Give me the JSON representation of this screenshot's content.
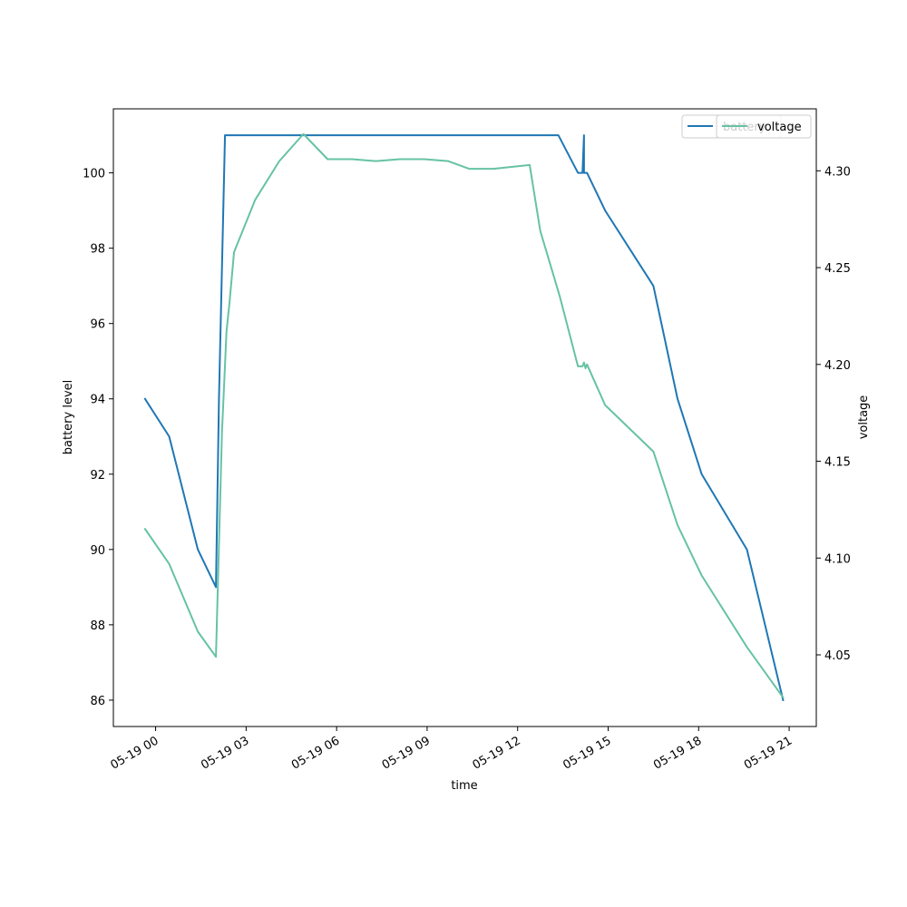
{
  "chart_data": {
    "type": "line",
    "xlabel": "time",
    "ylabel_left": "battery level",
    "ylabel_right": "voltage",
    "x_ticks": [
      {
        "label": "05-19 00",
        "hour": 0
      },
      {
        "label": "05-19 03",
        "hour": 3
      },
      {
        "label": "05-19 06",
        "hour": 6
      },
      {
        "label": "05-19 09",
        "hour": 9
      },
      {
        "label": "05-19 12",
        "hour": 12
      },
      {
        "label": "05-19 15",
        "hour": 15
      },
      {
        "label": "05-19 18",
        "hour": 18
      },
      {
        "label": "05-19 21",
        "hour": 21
      }
    ],
    "xlim_hours": [
      -1.4,
      21.9
    ],
    "left_axis": {
      "ylim": [
        85.3,
        101.7
      ],
      "ticks": [
        86,
        88,
        90,
        92,
        94,
        96,
        98,
        100
      ]
    },
    "right_axis": {
      "ylim": [
        4.013,
        4.332
      ],
      "ticks": [
        4.05,
        4.1,
        4.15,
        4.2,
        4.25,
        4.3
      ],
      "tick_labels": [
        "4.05",
        "4.10",
        "4.15",
        "4.20",
        "4.25",
        "4.30"
      ]
    },
    "series": [
      {
        "name": "battery",
        "axis": "left",
        "color": "#1f77b4",
        "points": [
          [
            -0.35,
            94
          ],
          [
            0.45,
            93
          ],
          [
            1.4,
            90
          ],
          [
            2.0,
            89
          ],
          [
            2.1,
            94
          ],
          [
            2.3,
            101
          ],
          [
            13.35,
            101
          ],
          [
            14.0,
            100
          ],
          [
            14.15,
            100
          ],
          [
            14.2,
            101
          ],
          [
            14.2,
            100
          ],
          [
            14.3,
            100
          ],
          [
            14.9,
            99
          ],
          [
            16.5,
            97
          ],
          [
            17.3,
            94
          ],
          [
            18.1,
            92
          ],
          [
            19.6,
            90
          ],
          [
            20.8,
            86
          ]
        ]
      },
      {
        "name": "voltage",
        "axis": "right",
        "color": "#66c2a5",
        "points": [
          [
            -0.35,
            4.115
          ],
          [
            0.45,
            4.097
          ],
          [
            1.4,
            4.062
          ],
          [
            2.0,
            4.049
          ],
          [
            2.2,
            4.165
          ],
          [
            2.35,
            4.217
          ],
          [
            2.45,
            4.232
          ],
          [
            2.6,
            4.258
          ],
          [
            3.3,
            4.285
          ],
          [
            4.1,
            4.305
          ],
          [
            4.9,
            4.319
          ],
          [
            5.7,
            4.306
          ],
          [
            6.5,
            4.306
          ],
          [
            7.3,
            4.305
          ],
          [
            8.1,
            4.306
          ],
          [
            8.9,
            4.306
          ],
          [
            9.7,
            4.305
          ],
          [
            10.4,
            4.301
          ],
          [
            11.2,
            4.301
          ],
          [
            12.4,
            4.303
          ],
          [
            12.75,
            4.269
          ],
          [
            13.4,
            4.235
          ],
          [
            14.0,
            4.199
          ],
          [
            14.15,
            4.199
          ],
          [
            14.2,
            4.201
          ],
          [
            14.25,
            4.198
          ],
          [
            14.3,
            4.2
          ],
          [
            14.9,
            4.179
          ],
          [
            16.5,
            4.155
          ],
          [
            17.3,
            4.117
          ],
          [
            18.1,
            4.091
          ],
          [
            19.6,
            4.054
          ],
          [
            20.8,
            4.028
          ]
        ]
      }
    ],
    "legend_labels": [
      "battery",
      "voltage"
    ],
    "legend_location": "top-right",
    "grid": false
  }
}
